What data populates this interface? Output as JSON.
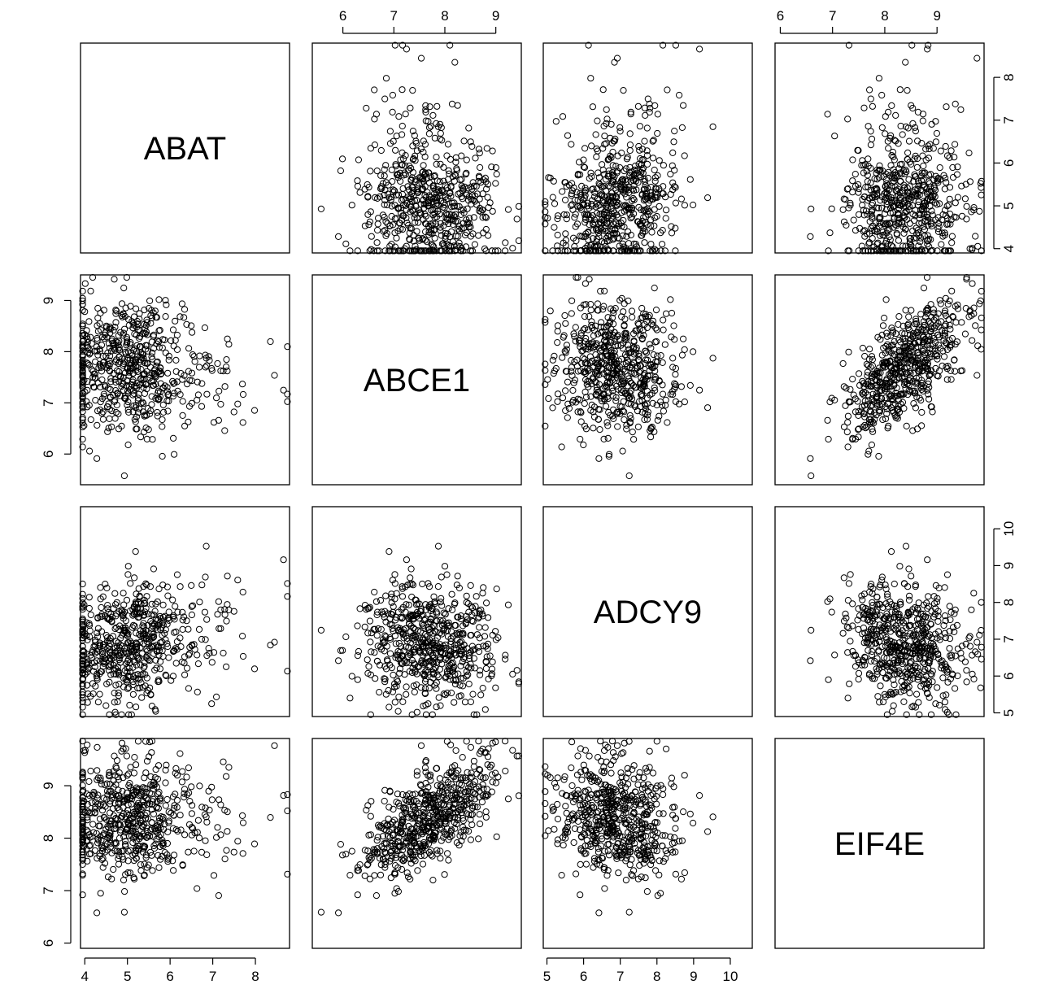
{
  "chart_data": {
    "type": "scatter",
    "variables": [
      "ABAT",
      "ABCE1",
      "ADCY9",
      "EIF4E"
    ],
    "ranges": {
      "ABAT": [
        3.9,
        8.8
      ],
      "ABCE1": [
        5.4,
        9.5
      ],
      "ADCY9": [
        4.9,
        10.6
      ],
      "EIF4E": [
        5.9,
        9.9
      ]
    },
    "ticks": {
      "ABAT": [
        4,
        5,
        6,
        7,
        8
      ],
      "ABCE1": [
        6,
        7,
        8,
        9
      ],
      "ADCY9": [
        5,
        6,
        7,
        8,
        9,
        10
      ],
      "EIF4E": [
        6,
        7,
        8,
        9
      ]
    },
    "tick_labels": {
      "ABAT": [
        "4",
        "5",
        "6",
        "7",
        "8"
      ],
      "ABCE1": [
        "6",
        "7",
        "8",
        "9"
      ],
      "ADCY9": [
        "5",
        "6",
        "7",
        "8",
        "9",
        "10"
      ],
      "EIF4E": [
        "6",
        "7",
        "8",
        "9"
      ]
    },
    "axis_placement": {
      "top": [
        "ABCE1",
        "EIF4E"
      ],
      "bottom": [
        "ABAT",
        "ADCY9"
      ],
      "left": [
        "ABCE1",
        "EIF4E"
      ],
      "right": [
        "ABAT",
        "ADCY9"
      ]
    },
    "means": {
      "ABAT": 5.1,
      "ABCE1": 7.7,
      "ADCY9": 6.9,
      "EIF4E": 8.4
    },
    "sds": {
      "ABAT": 0.85,
      "ABCE1": 0.65,
      "ADCY9": 0.85,
      "EIF4E": 0.6
    },
    "correlations": [
      [
        1.0,
        -0.05,
        0.25,
        0.0
      ],
      [
        -0.05,
        1.0,
        -0.1,
        0.65
      ],
      [
        0.25,
        -0.1,
        1.0,
        -0.2
      ],
      [
        0.0,
        0.65,
        -0.2,
        1.0
      ]
    ],
    "n_points": 600,
    "marker": "open-circle",
    "grid": false,
    "legend": "none"
  }
}
